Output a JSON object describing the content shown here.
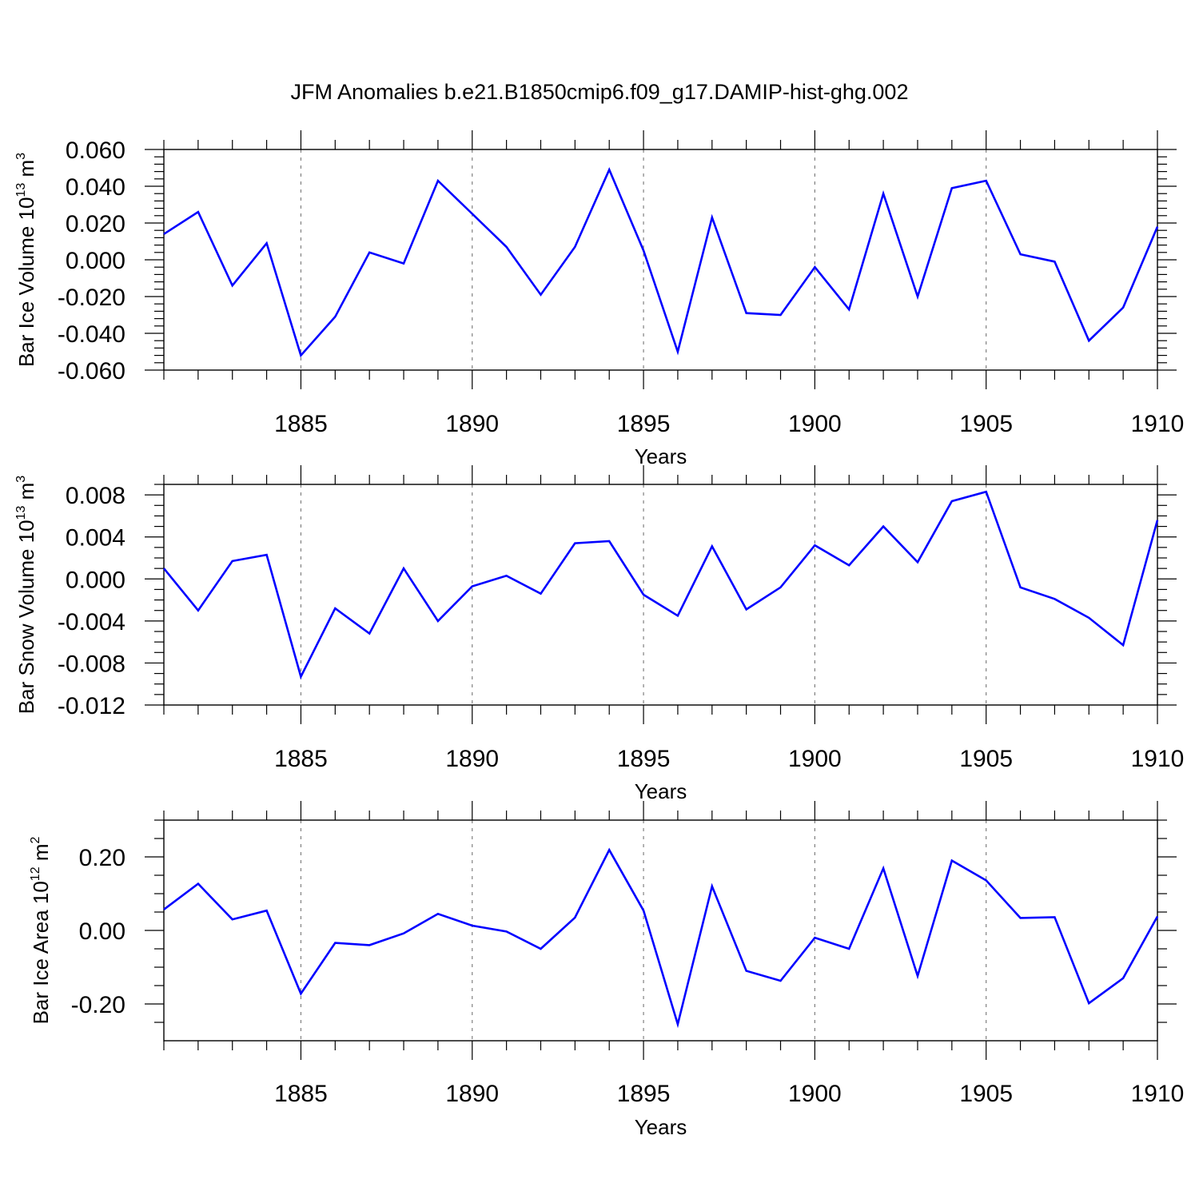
{
  "figure": {
    "title": "JFM Anomalies b.e21.B1850cmip6.f09_g17.DAMIP-hist-ghg.002"
  },
  "colors": {
    "series": "#0000ff",
    "axis": "#000000",
    "grid": "#808080",
    "background": "#ffffff"
  },
  "chart_data": [
    {
      "type": "line",
      "title": "JFM Anomalies b.e21.B1850cmip6.f09_g17.DAMIP-hist-ghg.002",
      "xlabel": "Years",
      "ylabel": {
        "text": "Bar Ice Volume 10",
        "exponent": "13",
        "unit": " m",
        "unit_exponent": "3"
      },
      "xlim": [
        1881,
        1910
      ],
      "ylim": [
        -0.06,
        0.06
      ],
      "x_ticks": [
        1885,
        1890,
        1895,
        1900,
        1905,
        1910
      ],
      "y_ticks": [
        -0.06,
        -0.04,
        -0.02,
        0.0,
        0.02,
        0.04,
        0.06
      ],
      "y_tick_labels": [
        "-0.060",
        "-0.040",
        "-0.020",
        "0.000",
        "0.020",
        "0.040",
        "0.060"
      ],
      "x_grid": "dashed at major x ticks",
      "x": [
        1881,
        1882,
        1883,
        1884,
        1885,
        1886,
        1887,
        1888,
        1889,
        1890,
        1891,
        1892,
        1893,
        1894,
        1895,
        1896,
        1897,
        1898,
        1899,
        1900,
        1901,
        1902,
        1903,
        1904,
        1905,
        1906,
        1907,
        1908,
        1909,
        1910
      ],
      "series": [
        {
          "name": "Bar Ice Volume",
          "values": [
            0.014,
            0.026,
            -0.014,
            0.009,
            -0.052,
            -0.031,
            0.004,
            -0.002,
            0.043,
            0.025,
            0.007,
            -0.019,
            0.007,
            0.049,
            0.005,
            -0.05,
            0.023,
            -0.029,
            -0.03,
            -0.004,
            -0.027,
            0.036,
            -0.02,
            0.039,
            0.043,
            0.003,
            -0.001,
            -0.044,
            -0.026,
            0.018
          ]
        }
      ]
    },
    {
      "type": "line",
      "xlabel": "Years",
      "ylabel": {
        "text": "Bar Snow Volume 10",
        "exponent": "13",
        "unit": " m",
        "unit_exponent": "3"
      },
      "xlim": [
        1881,
        1910
      ],
      "ylim": [
        -0.012,
        0.009
      ],
      "x_ticks": [
        1885,
        1890,
        1895,
        1900,
        1905,
        1910
      ],
      "y_ticks": [
        -0.012,
        -0.008,
        -0.004,
        0.0,
        0.004,
        0.008
      ],
      "y_tick_labels": [
        "-0.012",
        "-0.008",
        "-0.004",
        "0.000",
        "0.004",
        "0.008"
      ],
      "x_grid": "dashed at major x ticks",
      "x": [
        1881,
        1882,
        1883,
        1884,
        1885,
        1886,
        1887,
        1888,
        1889,
        1890,
        1891,
        1892,
        1893,
        1894,
        1895,
        1896,
        1897,
        1898,
        1899,
        1900,
        1901,
        1902,
        1903,
        1904,
        1905,
        1906,
        1907,
        1908,
        1909,
        1910
      ],
      "series": [
        {
          "name": "Bar Snow Volume",
          "values": [
            0.001,
            -0.003,
            0.0017,
            0.0023,
            -0.0093,
            -0.0028,
            -0.0052,
            0.001,
            -0.004,
            -0.0007,
            0.0003,
            -0.0014,
            0.0034,
            0.0036,
            -0.0015,
            -0.0035,
            0.0031,
            -0.0029,
            -0.0008,
            0.0032,
            0.0013,
            0.005,
            0.0016,
            0.0074,
            0.0083,
            -0.0008,
            -0.0019,
            -0.0037,
            -0.0063,
            0.0056
          ]
        }
      ]
    },
    {
      "type": "line",
      "xlabel": "Years",
      "ylabel": {
        "text": "Bar Ice Area 10",
        "exponent": "12",
        "unit": " m",
        "unit_exponent": "2"
      },
      "xlim": [
        1881,
        1910
      ],
      "ylim": [
        -0.3,
        0.3
      ],
      "x_ticks": [
        1885,
        1890,
        1895,
        1900,
        1905,
        1910
      ],
      "y_ticks": [
        -0.2,
        0.0,
        0.2
      ],
      "y_tick_labels": [
        "-0.20",
        "0.00",
        "0.20"
      ],
      "x_grid": "dashed at major x ticks",
      "x": [
        1881,
        1882,
        1883,
        1884,
        1885,
        1886,
        1887,
        1888,
        1889,
        1890,
        1891,
        1892,
        1893,
        1894,
        1895,
        1896,
        1897,
        1898,
        1899,
        1900,
        1901,
        1902,
        1903,
        1904,
        1905,
        1906,
        1907,
        1908,
        1909,
        1910
      ],
      "series": [
        {
          "name": "Bar Ice Area",
          "values": [
            0.057,
            0.127,
            0.03,
            0.054,
            -0.172,
            -0.034,
            -0.04,
            -0.008,
            0.045,
            0.013,
            -0.003,
            -0.05,
            0.035,
            0.219,
            0.054,
            -0.255,
            0.12,
            -0.11,
            -0.137,
            -0.02,
            -0.05,
            0.169,
            -0.124,
            0.19,
            0.136,
            0.034,
            0.036,
            -0.198,
            -0.13,
            0.038
          ]
        }
      ]
    }
  ]
}
